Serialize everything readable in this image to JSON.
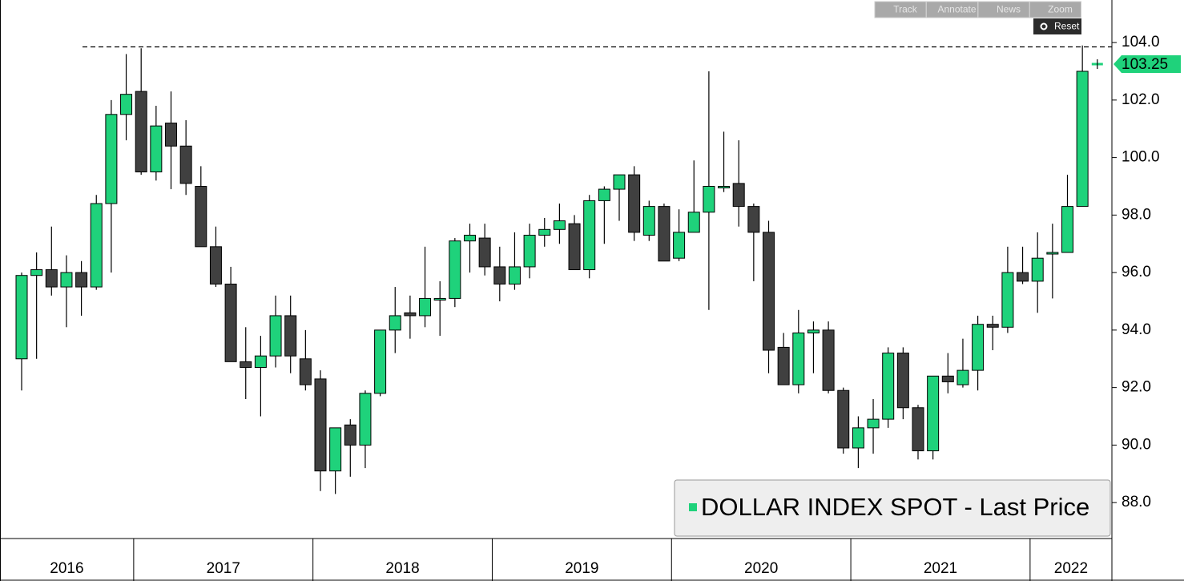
{
  "chart_data": {
    "type": "candlestick",
    "x_labels": [
      "2016",
      "2017",
      "2018",
      "2019",
      "2020",
      "2021",
      "2022"
    ],
    "series": [
      {
        "name": "DOLLAR INDEX SPOT - Last Price",
        "color": "#1fd27b",
        "down_color": "#404040",
        "open": [
          93.0,
          95.9,
          96.1,
          95.5,
          96.0,
          95.5,
          98.4,
          101.5,
          102.3,
          99.5,
          101.2,
          100.4,
          99.0,
          96.9,
          95.6,
          92.9,
          92.7,
          93.1,
          94.5,
          93.0,
          92.3,
          89.1,
          90.7,
          90.0,
          91.8,
          94.0,
          94.6,
          94.5,
          95.1,
          95.1,
          97.1,
          97.2,
          96.2,
          95.6,
          96.2,
          97.3,
          97.5,
          97.7,
          96.1,
          98.5,
          98.9,
          99.4,
          97.3,
          98.3,
          96.5,
          97.4,
          98.1,
          99.0,
          99.1,
          98.3,
          97.4,
          93.4,
          92.1,
          93.9,
          94.0,
          91.9,
          89.9,
          90.6,
          90.9,
          93.2,
          91.3,
          89.8,
          92.4,
          92.1,
          92.6,
          94.2,
          94.1,
          96.0,
          95.7,
          96.7,
          96.7,
          98.3
        ],
        "high": [
          96.0,
          96.7,
          97.6,
          96.6,
          96.4,
          98.7,
          102.0,
          103.6,
          103.8,
          101.8,
          102.3,
          101.3,
          99.7,
          97.6,
          96.2,
          94.1,
          93.8,
          95.2,
          95.2,
          94.0,
          92.6,
          90.6,
          90.9,
          91.9,
          94.0,
          95.5,
          95.2,
          96.9,
          95.7,
          97.2,
          97.7,
          97.7,
          96.9,
          97.4,
          97.7,
          97.9,
          98.4,
          98.0,
          98.7,
          99.0,
          99.4,
          99.7,
          98.5,
          98.4,
          98.2,
          99.9,
          103.0,
          100.9,
          100.6,
          98.4,
          97.8,
          93.9,
          94.7,
          94.3,
          94.3,
          92.0,
          91.0,
          91.6,
          93.4,
          93.4,
          91.4,
          92.4,
          93.2,
          93.7,
          94.5,
          94.5,
          96.9,
          96.9,
          97.4,
          97.7,
          99.4,
          103.9
        ],
        "low": [
          91.9,
          93.0,
          95.2,
          94.1,
          94.5,
          95.4,
          96.0,
          100.6,
          99.4,
          99.2,
          98.9,
          98.7,
          96.9,
          95.5,
          92.9,
          91.6,
          91.0,
          92.7,
          92.5,
          91.9,
          88.4,
          88.3,
          88.9,
          89.2,
          91.7,
          93.2,
          93.7,
          94.1,
          93.8,
          94.8,
          96.0,
          95.9,
          95.0,
          95.4,
          95.8,
          96.9,
          97.0,
          96.1,
          95.8,
          97.0,
          97.8,
          97.1,
          97.1,
          96.4,
          96.4,
          97.4,
          94.7,
          98.8,
          97.6,
          95.7,
          92.5,
          92.1,
          91.8,
          92.5,
          91.8,
          89.7,
          89.2,
          89.7,
          90.6,
          90.9,
          89.5,
          89.5,
          91.8,
          92.0,
          91.9,
          93.3,
          93.9,
          95.6,
          94.6,
          95.1,
          96.7,
          98.3
        ],
        "close": [
          95.9,
          96.1,
          95.5,
          96.0,
          95.5,
          98.4,
          101.5,
          102.2,
          99.5,
          101.1,
          100.4,
          99.1,
          96.9,
          95.6,
          92.9,
          92.7,
          93.1,
          94.5,
          93.1,
          92.1,
          89.1,
          90.6,
          90.0,
          91.8,
          94.0,
          94.5,
          94.5,
          95.1,
          95.1,
          97.1,
          97.3,
          96.2,
          95.6,
          96.2,
          97.3,
          97.5,
          97.8,
          96.1,
          98.5,
          98.9,
          99.4,
          97.4,
          98.3,
          96.4,
          97.4,
          98.1,
          99.0,
          99.0,
          98.3,
          97.4,
          93.3,
          92.1,
          93.9,
          94.0,
          91.9,
          89.9,
          90.6,
          90.9,
          93.2,
          91.3,
          89.8,
          92.4,
          92.2,
          92.6,
          94.2,
          94.1,
          96.0,
          95.7,
          96.5,
          96.7,
          98.3,
          103.0
        ]
      }
    ],
    "last_price": 103.25,
    "high_line": 103.85,
    "ylim": [
      86.75,
      105.48
    ],
    "yticks": [
      {
        "value": 88,
        "label": "88.0"
      },
      {
        "value": 90,
        "label": "90.0"
      },
      {
        "value": 92,
        "label": "92.0"
      },
      {
        "value": 94,
        "label": "94.0"
      },
      {
        "value": 96,
        "label": "96.0"
      },
      {
        "value": 98,
        "label": "98.0"
      },
      {
        "value": 100,
        "label": "100.0"
      },
      {
        "value": 102,
        "label": "102.0"
      },
      {
        "value": 104,
        "label": "104.0"
      }
    ],
    "legend": "bottom-right",
    "toolbar": [
      "Track",
      "Annotate",
      "News",
      "Zoom"
    ],
    "reset": "Reset"
  }
}
